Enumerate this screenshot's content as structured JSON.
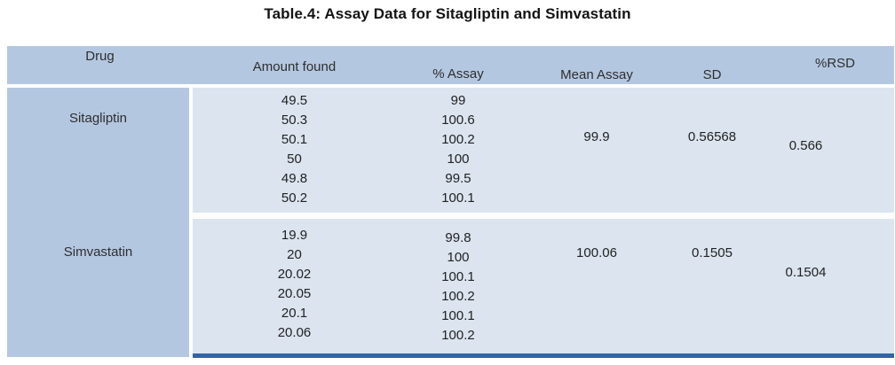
{
  "title": "Table.4: Assay Data for Sitagliptin and Simvastatin",
  "columns": [
    "Drug",
    "Amount found",
    "% Assay",
    "Mean Assay",
    "SD",
    "%RSD"
  ],
  "groups": [
    {
      "drug": "Sitagliptin",
      "amount_found": [
        "49.5",
        "50.3",
        "50.1",
        "50",
        "49.8",
        "50.2"
      ],
      "percent_assay": [
        "99",
        "100.6",
        "100.2",
        "100",
        "99.5",
        "100.1"
      ],
      "mean_assay": "99.9",
      "sd": "0.56568",
      "percent_rsd": "0.566"
    },
    {
      "drug": "Simvastatin",
      "amount_found": [
        "19.9",
        "20",
        "20.02",
        "20.05",
        "20.1",
        "20.06"
      ],
      "percent_assay": [
        "99.8",
        "100",
        "100.1",
        "100.2",
        "100.1",
        "100.2"
      ],
      "mean_assay": "100.06",
      "sd": "0.1505",
      "percent_rsd": "0.1504"
    }
  ],
  "colors": {
    "header_fill": "#b4c7e1",
    "body_fill": "#dbe4ef",
    "bottom_bar": "#35639f",
    "text": "#222222",
    "background": "#ffffff"
  }
}
